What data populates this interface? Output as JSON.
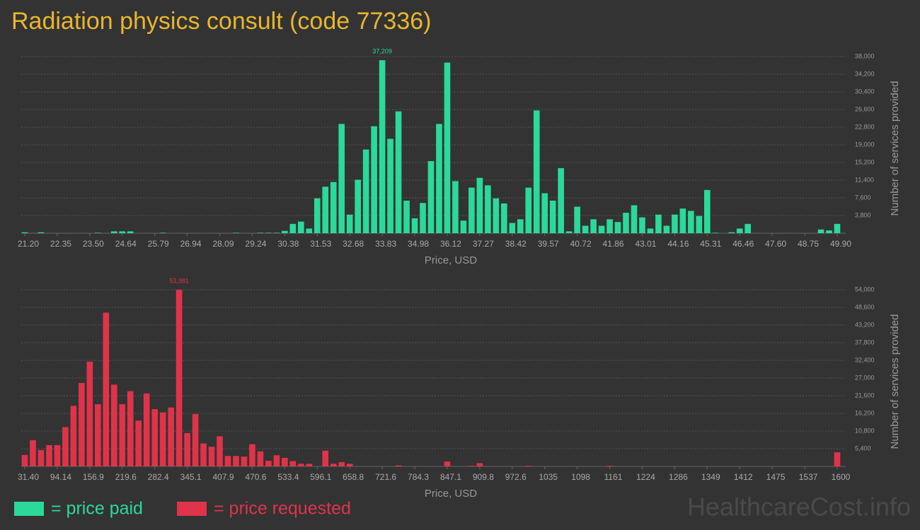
{
  "title": "Radiation physics consult (code 77336)",
  "watermark": "HealthcareCost.info",
  "chart_data": [
    {
      "type": "bar",
      "name": "= price paid",
      "color": "#2bd99b",
      "x_label": "Price, USD",
      "y_label": "Number of services provided",
      "annotation": "37,209",
      "grid": true,
      "ylim": [
        0,
        38000
      ],
      "yticks": [
        {
          "value": 3800,
          "label": "3,800"
        },
        {
          "value": 7600,
          "label": "7,600"
        },
        {
          "value": 11400,
          "label": "11,400"
        },
        {
          "value": 15200,
          "label": "15,200"
        },
        {
          "value": 19000,
          "label": "19,000"
        },
        {
          "value": 22800,
          "label": "22,800"
        },
        {
          "value": 26600,
          "label": "26,600"
        },
        {
          "value": 30400,
          "label": "30,400"
        },
        {
          "value": 34200,
          "label": "34,200"
        },
        {
          "value": 38000,
          "label": "38,000"
        }
      ],
      "categories": [
        "21.20",
        null,
        null,
        null,
        "22.35",
        null,
        null,
        null,
        "23.50",
        null,
        null,
        null,
        "24.64",
        null,
        null,
        null,
        "25.79",
        null,
        null,
        null,
        "26.94",
        null,
        null,
        null,
        "28.09",
        null,
        null,
        null,
        "29.24",
        null,
        null,
        null,
        "30.38",
        null,
        null,
        null,
        "31.53",
        null,
        null,
        null,
        "32.68",
        null,
        null,
        null,
        "33.83",
        null,
        null,
        null,
        "34.98",
        null,
        null,
        null,
        "36.12",
        null,
        null,
        null,
        "37.27",
        null,
        null,
        null,
        "38.42",
        null,
        null,
        null,
        "39.57",
        null,
        null,
        null,
        "40.72",
        null,
        null,
        null,
        "41.86",
        null,
        null,
        null,
        "43.01",
        null,
        null,
        null,
        "44.16",
        null,
        null,
        null,
        "45.31",
        null,
        null,
        null,
        "46.46",
        null,
        null,
        null,
        "47.60",
        null,
        null,
        null,
        "48.75",
        null,
        null,
        null,
        "49.90"
      ],
      "values": [
        200,
        0,
        200,
        0,
        0,
        0,
        0,
        0,
        0,
        100,
        0,
        400,
        400,
        400,
        0,
        0,
        0,
        100,
        0,
        0,
        0,
        0,
        0,
        0,
        0,
        0,
        100,
        0,
        0,
        100,
        100,
        100,
        500,
        2000,
        2500,
        1000,
        7500,
        10000,
        11000,
        23500,
        4000,
        11500,
        18000,
        23000,
        37209,
        20300,
        26200,
        7000,
        3200,
        6500,
        15500,
        23500,
        36700,
        11200,
        2700,
        9800,
        11900,
        10300,
        7500,
        6400,
        2200,
        3000,
        9800,
        26400,
        8600,
        7000,
        14000,
        400,
        5700,
        1600,
        3000,
        1600,
        3000,
        2400,
        4400,
        6000,
        3400,
        1000,
        4000,
        1600,
        4000,
        5300,
        4800,
        3700,
        9300,
        100,
        0,
        200,
        1000,
        2000,
        0,
        0,
        0,
        0,
        0,
        0,
        0,
        0,
        800,
        600,
        2000
      ]
    },
    {
      "type": "bar",
      "name": "= price requested",
      "color": "#e0334a",
      "x_label": "Price, USD",
      "y_label": "Number of services provided",
      "annotation": "53,981",
      "grid": true,
      "ylim": [
        0,
        54000
      ],
      "yticks": [
        {
          "value": 5400,
          "label": "5,400"
        },
        {
          "value": 10800,
          "label": "10,800"
        },
        {
          "value": 16200,
          "label": "16,200"
        },
        {
          "value": 21600,
          "label": "21,600"
        },
        {
          "value": 27000,
          "label": "27,000"
        },
        {
          "value": 32400,
          "label": "32,400"
        },
        {
          "value": 37800,
          "label": "37,800"
        },
        {
          "value": 43200,
          "label": "43,200"
        },
        {
          "value": 48600,
          "label": "48,600"
        },
        {
          "value": 54000,
          "label": "54,000"
        }
      ],
      "categories": [
        "31.40",
        null,
        null,
        null,
        "94.14",
        null,
        null,
        null,
        "156.9",
        null,
        null,
        null,
        "219.6",
        null,
        null,
        null,
        "282.4",
        null,
        null,
        null,
        "345.1",
        null,
        null,
        null,
        "407.9",
        null,
        null,
        null,
        "470.6",
        null,
        null,
        null,
        "533.4",
        null,
        null,
        null,
        "596.1",
        null,
        null,
        null,
        "658.8",
        null,
        null,
        null,
        "721.6",
        null,
        null,
        null,
        "784.3",
        null,
        null,
        null,
        "847.1",
        null,
        null,
        null,
        "909.8",
        null,
        null,
        null,
        "972.6",
        null,
        null,
        null,
        "1035",
        null,
        null,
        null,
        "1098",
        null,
        null,
        null,
        "1161",
        null,
        null,
        null,
        "1224",
        null,
        null,
        null,
        "1286",
        null,
        null,
        null,
        "1349",
        null,
        null,
        null,
        "1412",
        null,
        null,
        null,
        "1475",
        null,
        null,
        null,
        "1537",
        null,
        null,
        null,
        "1600"
      ],
      "values": [
        3500,
        8000,
        5000,
        6500,
        6500,
        12000,
        18500,
        25500,
        32000,
        19000,
        47000,
        25000,
        19000,
        23000,
        14000,
        22300,
        17500,
        16500,
        18000,
        53981,
        10200,
        16000,
        7000,
        6000,
        9200,
        3200,
        3200,
        3000,
        6800,
        4600,
        1700,
        3400,
        2600,
        1600,
        800,
        800,
        0,
        4800,
        800,
        1300,
        800,
        0,
        0,
        0,
        0,
        0,
        300,
        0,
        0,
        0,
        0,
        0,
        1500,
        0,
        0,
        200,
        1000,
        0,
        0,
        0,
        0,
        0,
        200,
        0,
        0,
        0,
        0,
        0,
        0,
        0,
        0,
        0,
        200,
        0,
        0,
        0,
        0,
        0,
        0,
        0,
        0,
        0,
        0,
        0,
        0,
        0,
        0,
        0,
        0,
        0,
        0,
        0,
        0,
        0,
        0,
        0,
        0,
        0,
        0,
        0,
        4300
      ]
    }
  ]
}
